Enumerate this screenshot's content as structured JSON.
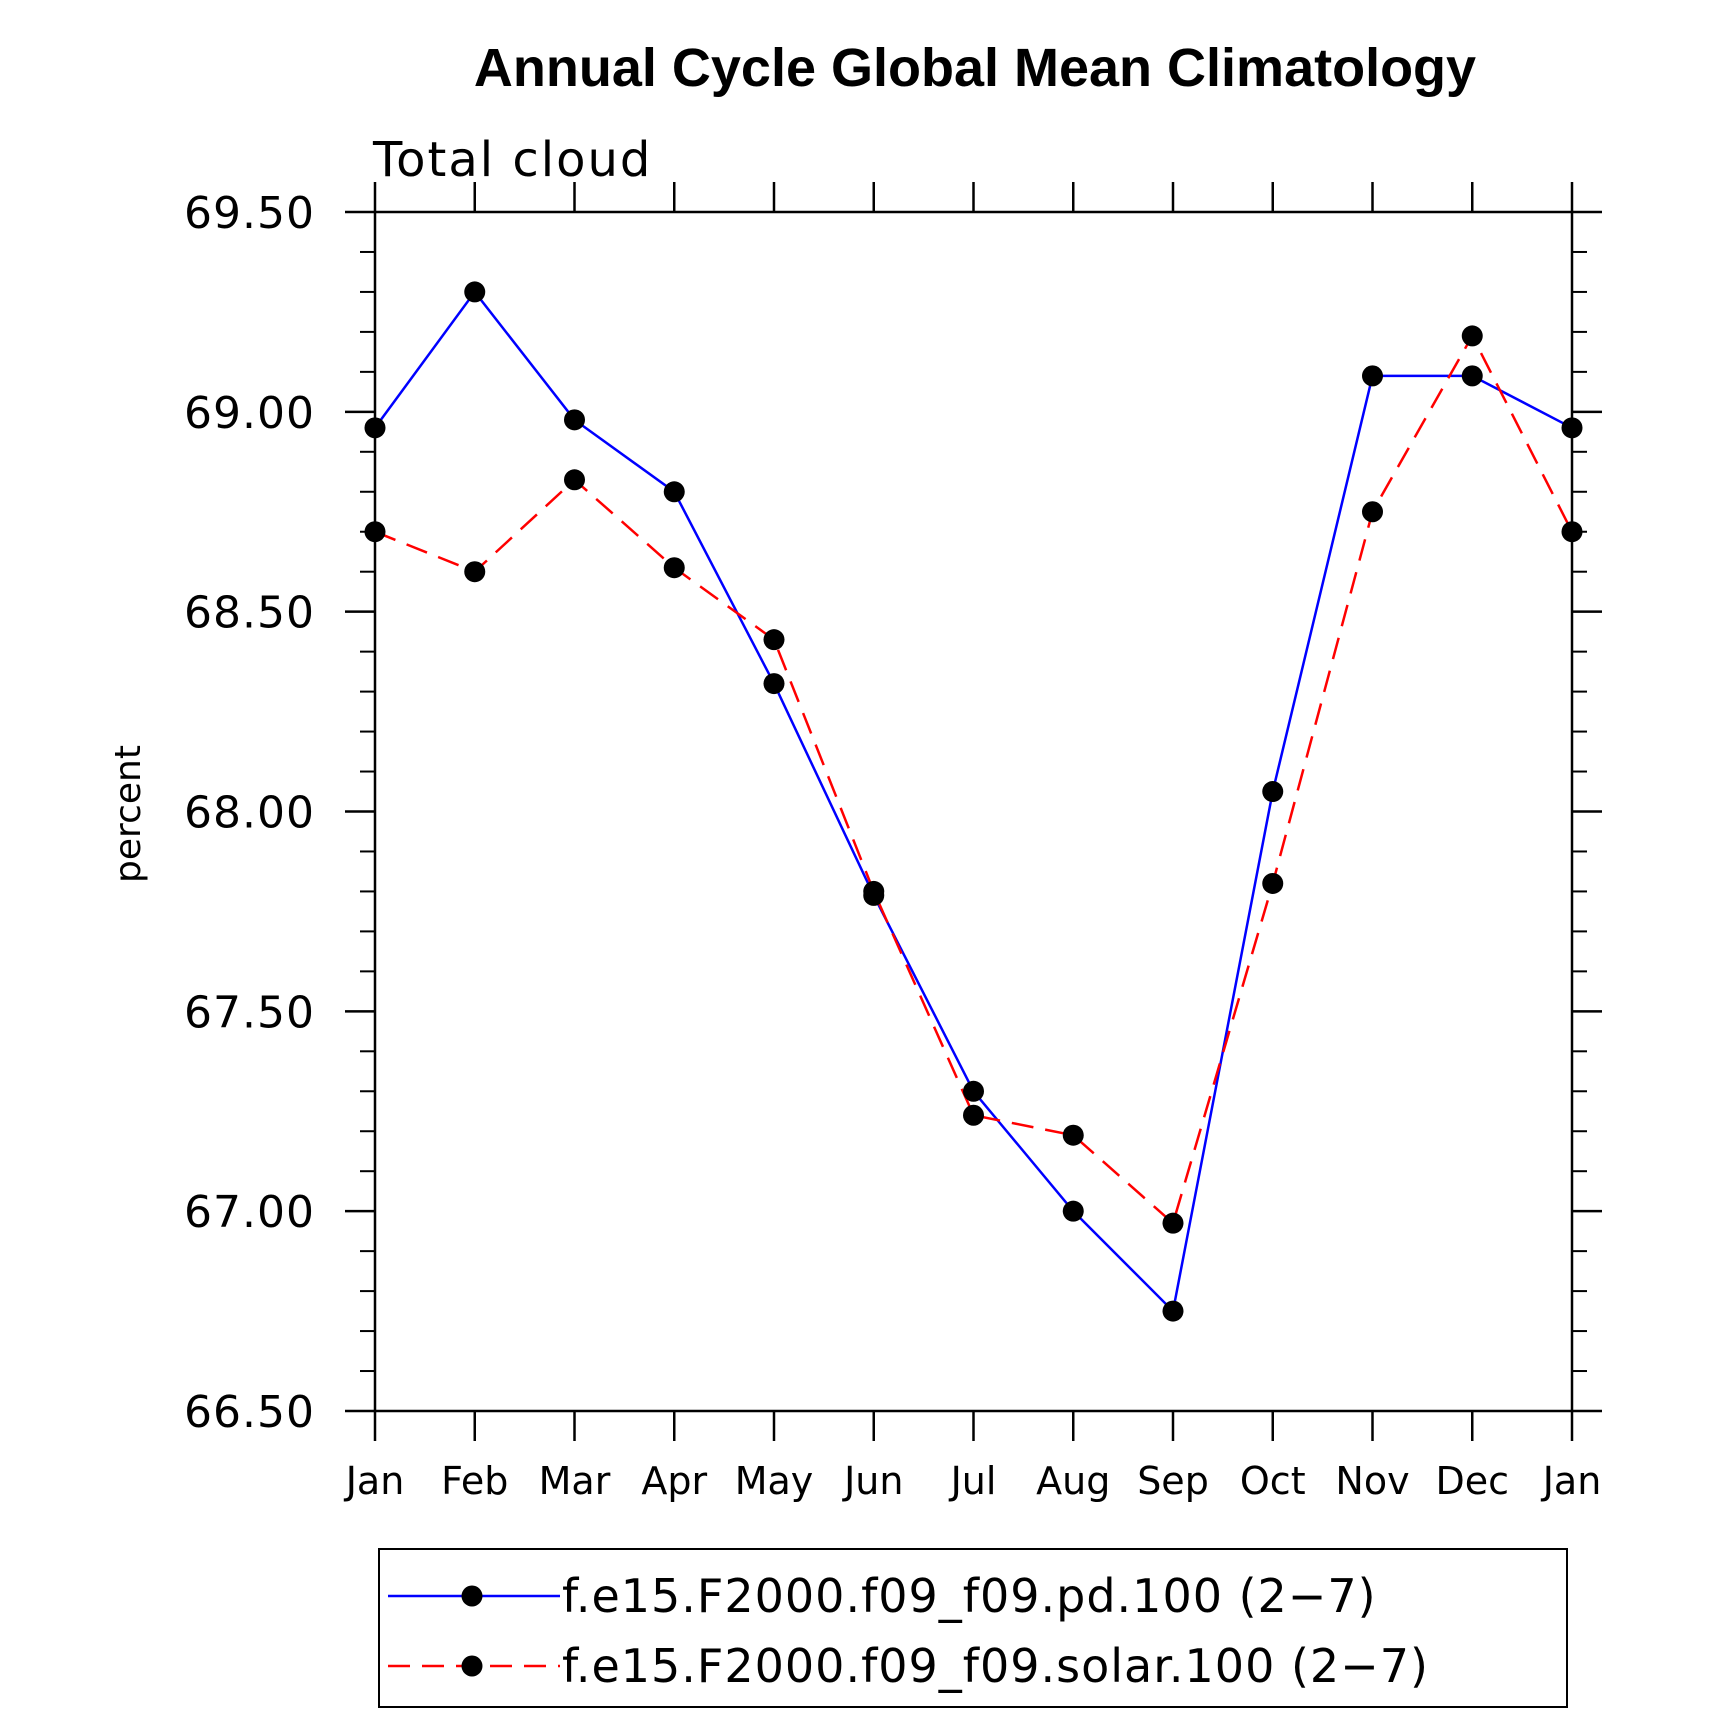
{
  "chart_data": {
    "type": "line",
    "title": "Annual Cycle Global Mean Climatology",
    "subtitle": "Total cloud",
    "ylabel": "percent",
    "xlabel": "",
    "categories": [
      "Jan",
      "Feb",
      "Mar",
      "Apr",
      "May",
      "Jun",
      "Jul",
      "Aug",
      "Sep",
      "Oct",
      "Nov",
      "Dec",
      "Jan"
    ],
    "ylim": [
      66.5,
      69.5
    ],
    "ytick_values": [
      66.5,
      67.0,
      67.5,
      68.0,
      68.5,
      69.0,
      69.5
    ],
    "ytick_labels": [
      "66.50",
      "67.00",
      "67.50",
      "68.00",
      "68.50",
      "69.00",
      "69.50"
    ],
    "minor_tick_step": 0.1,
    "series": [
      {
        "name": "f.e15.F2000.f09_f09.pd.100 (2−7)",
        "color": "#0000ff",
        "dash": "solid",
        "marker": "filled-circle",
        "values": [
          68.96,
          69.3,
          68.98,
          68.8,
          68.32,
          67.79,
          67.3,
          67.0,
          66.75,
          68.05,
          69.09,
          69.09,
          68.96
        ]
      },
      {
        "name": "f.e15.F2000.f09_f09.solar.100 (2−7)",
        "color": "#ff0000",
        "dash": "dashed",
        "marker": "filled-circle",
        "values": [
          68.7,
          68.6,
          68.83,
          68.61,
          68.43,
          67.8,
          67.24,
          67.19,
          66.97,
          67.82,
          68.75,
          69.19,
          68.7
        ]
      }
    ],
    "legend_position": "bottom"
  }
}
